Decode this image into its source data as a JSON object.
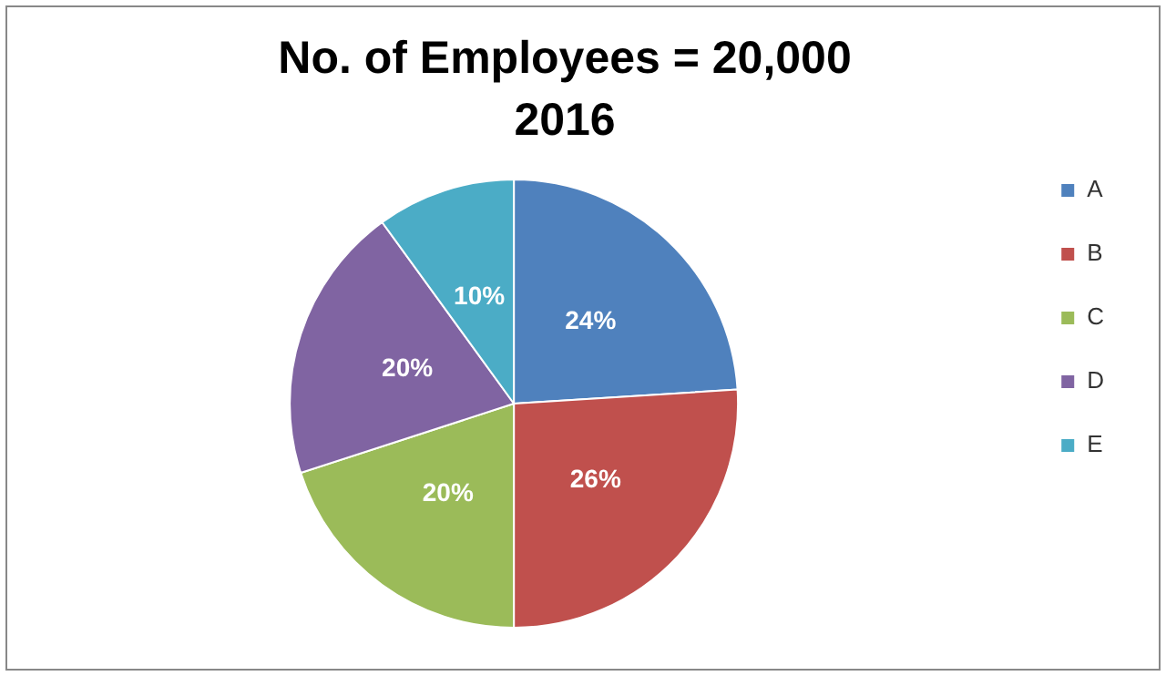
{
  "chart_data": {
    "type": "pie",
    "title": "No. of Employees = 20,000",
    "subtitle": "2016",
    "categories": [
      "A",
      "B",
      "C",
      "D",
      "E"
    ],
    "values": [
      24,
      26,
      20,
      20,
      10
    ],
    "colors": [
      "#4f81bd",
      "#c0504d",
      "#9bbb59",
      "#8064a2",
      "#4bacc6"
    ],
    "value_labels": [
      "24%",
      "26%",
      "20%",
      "20%",
      "10%"
    ],
    "legend": "right"
  }
}
